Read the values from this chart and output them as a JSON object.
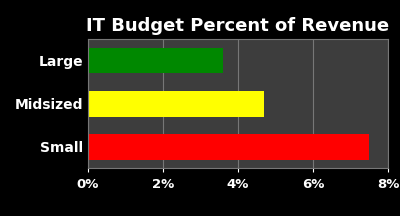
{
  "title": "IT Budget Percent of Revenue",
  "categories": [
    "Small",
    "Midsized",
    "Large"
  ],
  "values": [
    7.5,
    4.7,
    3.6
  ],
  "bar_colors": [
    "#ff0000",
    "#ffff00",
    "#008800"
  ],
  "background_color": "#000000",
  "plot_bg_color": "#3d3d3d",
  "text_color": "#ffffff",
  "title_fontsize": 13,
  "label_fontsize": 10,
  "tick_fontsize": 9.5,
  "xlim": [
    0,
    8
  ],
  "xticks": [
    0,
    2,
    4,
    6,
    8
  ],
  "xtick_labels": [
    "0%",
    "2%",
    "4%",
    "6%",
    "8%"
  ],
  "grid_color": "#777777",
  "bar_height": 0.6
}
